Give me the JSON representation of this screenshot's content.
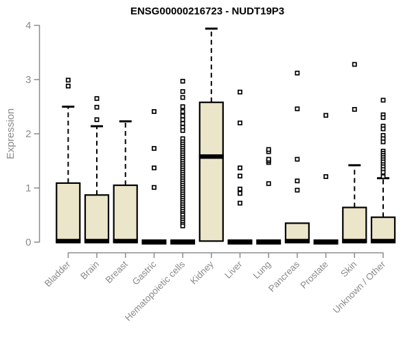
{
  "chart_data": {
    "type": "boxplot",
    "title": "ENSG00000216723 - NUDT19P3",
    "ylabel": "Expression",
    "xlabel": "",
    "ylim": [
      0,
      4
    ],
    "yticks": [
      0,
      1,
      2,
      3,
      4
    ],
    "grid": false,
    "legend": "none",
    "colors": {
      "box_fill": "#EBE5C9",
      "box_stroke": "#000000",
      "median": "#000000",
      "whisker": "#000000",
      "outlier_fill": "#FFFFFF",
      "outlier_stroke": "#000000",
      "axis": "#8A8A8A",
      "tick_label": "#8A8A8A",
      "title": "#000000",
      "background": "#FFFFFF"
    },
    "categories": [
      "Bladder",
      "Brain",
      "Breast",
      "Gastric",
      "Hematopoietic cells",
      "Kidney",
      "Liver",
      "Lung",
      "Pancreas",
      "Prostate",
      "Skin",
      "Unknown / Other"
    ],
    "boxes": [
      {
        "category": "Bladder",
        "q1": 0,
        "median": 0.02,
        "q3": 1.09,
        "whisker_low": 0,
        "whisker_high": 2.5,
        "outliers": [
          2.88,
          2.99
        ]
      },
      {
        "category": "Brain",
        "q1": 0,
        "median": 0.02,
        "q3": 0.87,
        "whisker_low": 0,
        "whisker_high": 2.14,
        "outliers": [
          2.26,
          2.49,
          2.65
        ]
      },
      {
        "category": "Breast",
        "q1": 0,
        "median": 0.02,
        "q3": 1.05,
        "whisker_low": 0,
        "whisker_high": 2.23,
        "outliers": []
      },
      {
        "category": "Gastric",
        "q1": 0,
        "median": 0.01,
        "q3": 0.02,
        "whisker_low": 0,
        "whisker_high": 0.02,
        "outliers": [
          1.01,
          1.37,
          1.73,
          2.41
        ]
      },
      {
        "category": "Hematopoietic cells",
        "q1": 0,
        "median": 0.01,
        "q3": 0.02,
        "whisker_low": 0,
        "whisker_high": 0.02,
        "outliers": [
          2.97,
          2.78,
          2.67,
          2.5,
          2.41,
          2.33,
          2.26,
          2.19,
          2.12,
          2.06,
          1.91,
          1.85,
          1.81,
          1.77,
          1.73,
          1.69,
          1.65,
          1.61,
          1.57,
          1.53,
          1.49,
          1.45,
          1.41,
          1.37,
          1.33,
          1.29,
          1.25,
          1.21,
          1.17,
          1.13,
          1.09,
          1.05,
          1.01,
          0.97,
          0.93,
          0.89,
          0.85,
          0.81,
          0.77,
          0.73,
          0.69,
          0.65,
          0.61,
          0.57,
          0.53,
          0.5,
          0.45,
          0.41,
          0.37,
          0.33,
          0.3
        ]
      },
      {
        "category": "Kidney",
        "q1": 0.02,
        "median": 1.58,
        "q3": 2.58,
        "whisker_low": 0.02,
        "whisker_high": 3.94,
        "outliers": []
      },
      {
        "category": "Liver",
        "q1": 0,
        "median": 0.01,
        "q3": 0.02,
        "whisker_low": 0,
        "whisker_high": 0.02,
        "outliers": [
          0.72,
          0.9,
          0.98,
          1.22,
          1.37,
          2.2,
          2.77
        ]
      },
      {
        "category": "Lung",
        "q1": 0,
        "median": 0.01,
        "q3": 0.02,
        "whisker_low": 0,
        "whisker_high": 0.02,
        "outliers": [
          1.08,
          1.47,
          1.5,
          1.53,
          1.67,
          1.71
        ]
      },
      {
        "category": "Pancreas",
        "q1": 0,
        "median": 0.02,
        "q3": 0.35,
        "whisker_low": 0,
        "whisker_high": 0.35,
        "outliers": [
          0.96,
          1.13,
          1.53,
          2.46,
          3.12
        ]
      },
      {
        "category": "Prostate",
        "q1": 0,
        "median": 0.01,
        "q3": 0.02,
        "whisker_low": 0,
        "whisker_high": 0.02,
        "outliers": [
          1.21,
          2.34
        ]
      },
      {
        "category": "Skin",
        "q1": 0,
        "median": 0.02,
        "q3": 0.64,
        "whisker_low": 0,
        "whisker_high": 1.42,
        "outliers": [
          2.45,
          3.28
        ]
      },
      {
        "category": "Unknown / Other",
        "q1": 0,
        "median": 0.02,
        "q3": 0.46,
        "whisker_low": 0,
        "whisker_high": 1.18,
        "outliers": [
          2.62,
          2.35,
          2.3,
          2.14,
          2.09,
          1.97,
          1.91,
          1.85,
          1.68,
          1.64,
          1.6,
          1.56,
          1.52,
          1.48,
          1.43,
          1.39,
          1.34,
          1.29,
          1.21
        ]
      }
    ]
  }
}
